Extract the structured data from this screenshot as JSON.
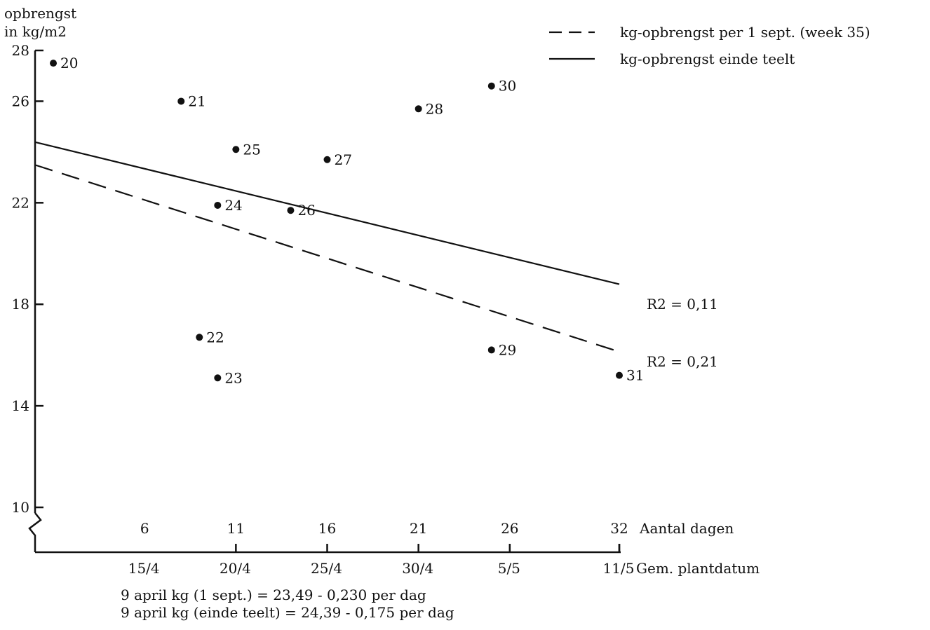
{
  "chart_data": {
    "type": "scatter",
    "title": "",
    "ylabel_line1": "opbrengst",
    "ylabel_line2": "in kg/m2",
    "y_ticks": [
      "28",
      "26",
      "22",
      "18",
      "14",
      "10"
    ],
    "ylim": [
      10,
      28
    ],
    "x_days_label": "Aantal dagen",
    "x_days_ticks": [
      "6",
      "11",
      "16",
      "21",
      "26",
      "32"
    ],
    "x_days_values": [
      6,
      11,
      16,
      21,
      26,
      32
    ],
    "x_date_label": "Gem. plantdatum",
    "x_date_ticks": [
      "15/4",
      "20/4",
      "25/4",
      "30/4",
      "5/5",
      "11/5"
    ],
    "xlim": [
      0,
      32
    ],
    "points": [
      {
        "label": "20",
        "x": 1,
        "y": 27.5
      },
      {
        "label": "21",
        "x": 8,
        "y": 26.0
      },
      {
        "label": "25",
        "x": 11,
        "y": 24.1
      },
      {
        "label": "27",
        "x": 16,
        "y": 23.7
      },
      {
        "label": "28",
        "x": 21,
        "y": 25.7
      },
      {
        "label": "30",
        "x": 25,
        "y": 26.6
      },
      {
        "label": "24",
        "x": 10,
        "y": 21.9
      },
      {
        "label": "26",
        "x": 14,
        "y": 21.7
      },
      {
        "label": "22",
        "x": 9,
        "y": 16.7
      },
      {
        "label": "23",
        "x": 10,
        "y": 15.1
      },
      {
        "label": "29",
        "x": 25,
        "y": 16.2
      },
      {
        "label": "31",
        "x": 32,
        "y": 15.2
      }
    ],
    "lines": [
      {
        "name": "kg-opbrengst per 1 sept. (week 35)",
        "style": "dashed",
        "intercept": 23.49,
        "slope": -0.23,
        "r2": "R2 = 0,21"
      },
      {
        "name": "kg-opbrengst einde teelt",
        "style": "solid",
        "intercept": 24.39,
        "slope": -0.175,
        "r2": "R2 = 0,11"
      }
    ],
    "legend_position": "top-right",
    "formulas": [
      "9 april kg (1 sept.) = 23,49 - 0,230  per dag",
      "9 april kg (einde teelt) = 24,39 - 0,175  per dag"
    ]
  }
}
